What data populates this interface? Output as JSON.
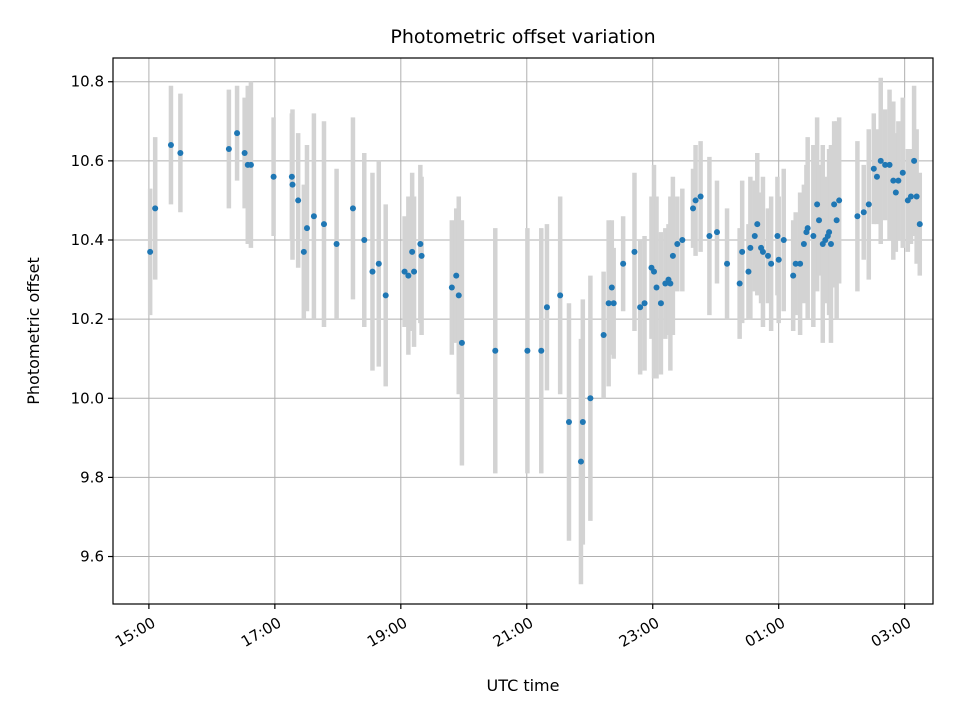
{
  "chart_data": {
    "type": "scatter",
    "title": "Photometric offset variation",
    "xlabel": "UTC time",
    "ylabel": "Photometric offset",
    "x_unit": "hours",
    "xlim": [
      14.43,
      27.45
    ],
    "ylim": [
      9.48,
      10.86
    ],
    "x_ticks": [
      {
        "value": 15,
        "label": "15:00"
      },
      {
        "value": 17,
        "label": "17:00"
      },
      {
        "value": 19,
        "label": "19:00"
      },
      {
        "value": 21,
        "label": "21:00"
      },
      {
        "value": 23,
        "label": "23:00"
      },
      {
        "value": 25,
        "label": "01:00"
      },
      {
        "value": 27,
        "label": "03:00"
      }
    ],
    "y_ticks": [
      {
        "value": 9.6,
        "label": "9.6"
      },
      {
        "value": 9.8,
        "label": "9.8"
      },
      {
        "value": 10.0,
        "label": "10.0"
      },
      {
        "value": 10.2,
        "label": "10.2"
      },
      {
        "value": 10.4,
        "label": "10.4"
      },
      {
        "value": 10.6,
        "label": "10.6"
      },
      {
        "value": 10.8,
        "label": "10.8"
      }
    ],
    "grid": true,
    "colors": {
      "point": "#1f77b4",
      "errorbar": "#d3d3d3",
      "grid": "#b0b0b0"
    },
    "series": [
      {
        "points": [
          [
            15.02,
            10.37,
            0.16
          ],
          [
            15.1,
            10.48,
            0.18
          ],
          [
            15.35,
            10.64,
            0.15
          ],
          [
            15.5,
            10.62,
            0.15
          ],
          [
            16.27,
            10.63,
            0.15
          ],
          [
            16.4,
            10.67,
            0.12
          ],
          [
            16.52,
            10.62,
            0.14
          ],
          [
            16.57,
            10.59,
            0.2
          ],
          [
            16.62,
            10.59,
            0.21
          ],
          [
            16.98,
            10.56,
            0.15
          ],
          [
            17.27,
            10.56,
            0.16
          ],
          [
            17.28,
            10.54,
            0.19
          ],
          [
            17.37,
            10.5,
            0.17
          ],
          [
            17.46,
            10.37,
            0.17
          ],
          [
            17.51,
            10.43,
            0.21
          ],
          [
            17.62,
            10.46,
            0.26
          ],
          [
            17.78,
            10.44,
            0.26
          ],
          [
            17.98,
            10.39,
            0.19
          ],
          [
            18.24,
            10.48,
            0.23
          ],
          [
            18.42,
            10.4,
            0.22
          ],
          [
            18.55,
            10.32,
            0.25
          ],
          [
            18.65,
            10.34,
            0.26
          ],
          [
            18.76,
            10.26,
            0.23
          ],
          [
            19.06,
            10.32,
            0.14
          ],
          [
            19.12,
            10.31,
            0.2
          ],
          [
            19.18,
            10.37,
            0.2
          ],
          [
            19.21,
            10.32,
            0.19
          ],
          [
            19.31,
            10.39,
            0.2
          ],
          [
            19.33,
            10.36,
            0.2
          ],
          [
            19.81,
            10.28,
            0.17
          ],
          [
            19.88,
            10.31,
            0.17
          ],
          [
            19.92,
            10.26,
            0.25
          ],
          [
            19.97,
            10.14,
            0.31
          ],
          [
            20.5,
            10.12,
            0.31
          ],
          [
            21.01,
            10.12,
            0.31
          ],
          [
            21.23,
            10.12,
            0.31
          ],
          [
            21.32,
            10.23,
            0.21
          ],
          [
            21.53,
            10.26,
            0.25
          ],
          [
            21.67,
            9.94,
            0.3
          ],
          [
            21.86,
            9.84,
            0.31
          ],
          [
            21.89,
            9.94,
            0.31
          ],
          [
            22.01,
            10.0,
            0.31
          ],
          [
            22.22,
            10.16,
            0.16
          ],
          [
            22.3,
            10.24,
            0.21
          ],
          [
            22.35,
            10.28,
            0.17
          ],
          [
            22.38,
            10.24,
            0.14
          ],
          [
            22.53,
            10.34,
            0.12
          ],
          [
            22.71,
            10.37,
            0.2
          ],
          [
            22.8,
            10.23,
            0.17
          ],
          [
            22.87,
            10.24,
            0.17
          ],
          [
            22.98,
            10.33,
            0.18
          ],
          [
            23.02,
            10.32,
            0.27
          ],
          [
            23.06,
            10.28,
            0.23
          ],
          [
            23.13,
            10.24,
            0.18
          ],
          [
            23.2,
            10.29,
            0.14
          ],
          [
            23.25,
            10.3,
            0.14
          ],
          [
            23.28,
            10.29,
            0.22
          ],
          [
            23.32,
            10.36,
            0.2
          ],
          [
            23.39,
            10.39,
            0.12
          ],
          [
            23.47,
            10.4,
            0.13
          ],
          [
            23.64,
            10.48,
            0.1
          ],
          [
            23.68,
            10.5,
            0.14
          ],
          [
            23.76,
            10.51,
            0.14
          ],
          [
            23.9,
            10.41,
            0.2
          ],
          [
            24.02,
            10.42,
            0.13
          ],
          [
            24.18,
            10.34,
            0.14
          ],
          [
            24.38,
            10.29,
            0.14
          ],
          [
            24.42,
            10.37,
            0.18
          ],
          [
            24.52,
            10.32,
            0.12
          ],
          [
            24.55,
            10.38,
            0.18
          ],
          [
            24.62,
            10.41,
            0.14
          ],
          [
            24.66,
            10.44,
            0.18
          ],
          [
            24.72,
            10.38,
            0.14
          ],
          [
            24.75,
            10.37,
            0.19
          ],
          [
            24.83,
            10.36,
            0.12
          ],
          [
            24.88,
            10.34,
            0.17
          ],
          [
            24.98,
            10.41,
            0.15
          ],
          [
            25.0,
            10.35,
            0.16
          ],
          [
            25.08,
            10.4,
            0.18
          ],
          [
            25.23,
            10.31,
            0.14
          ],
          [
            25.27,
            10.34,
            0.13
          ],
          [
            25.34,
            10.34,
            0.18
          ],
          [
            25.4,
            10.39,
            0.15
          ],
          [
            25.44,
            10.42,
            0.17
          ],
          [
            25.46,
            10.43,
            0.23
          ],
          [
            25.55,
            10.41,
            0.23
          ],
          [
            25.61,
            10.49,
            0.22
          ],
          [
            25.64,
            10.45,
            0.14
          ],
          [
            25.7,
            10.39,
            0.25
          ],
          [
            25.74,
            10.4,
            0.16
          ],
          [
            25.78,
            10.41,
            0.13
          ],
          [
            25.8,
            10.42,
            0.21
          ],
          [
            25.83,
            10.39,
            0.25
          ],
          [
            25.88,
            10.49,
            0.21
          ],
          [
            25.92,
            10.45,
            0.25
          ],
          [
            25.96,
            10.5,
            0.21
          ],
          [
            26.25,
            10.46,
            0.19
          ],
          [
            26.35,
            10.47,
            0.12
          ],
          [
            26.43,
            10.49,
            0.19
          ],
          [
            26.51,
            10.58,
            0.14
          ],
          [
            26.56,
            10.56,
            0.12
          ],
          [
            26.62,
            10.6,
            0.21
          ],
          [
            26.69,
            10.59,
            0.14
          ],
          [
            26.76,
            10.59,
            0.19
          ],
          [
            26.82,
            10.55,
            0.2
          ],
          [
            26.86,
            10.52,
            0.15
          ],
          [
            26.9,
            10.55,
            0.15
          ],
          [
            26.97,
            10.57,
            0.19
          ],
          [
            27.05,
            10.5,
            0.13
          ],
          [
            27.1,
            10.51,
            0.12
          ],
          [
            27.15,
            10.6,
            0.19
          ],
          [
            27.19,
            10.51,
            0.17
          ],
          [
            27.24,
            10.44,
            0.13
          ]
        ]
      }
    ]
  }
}
